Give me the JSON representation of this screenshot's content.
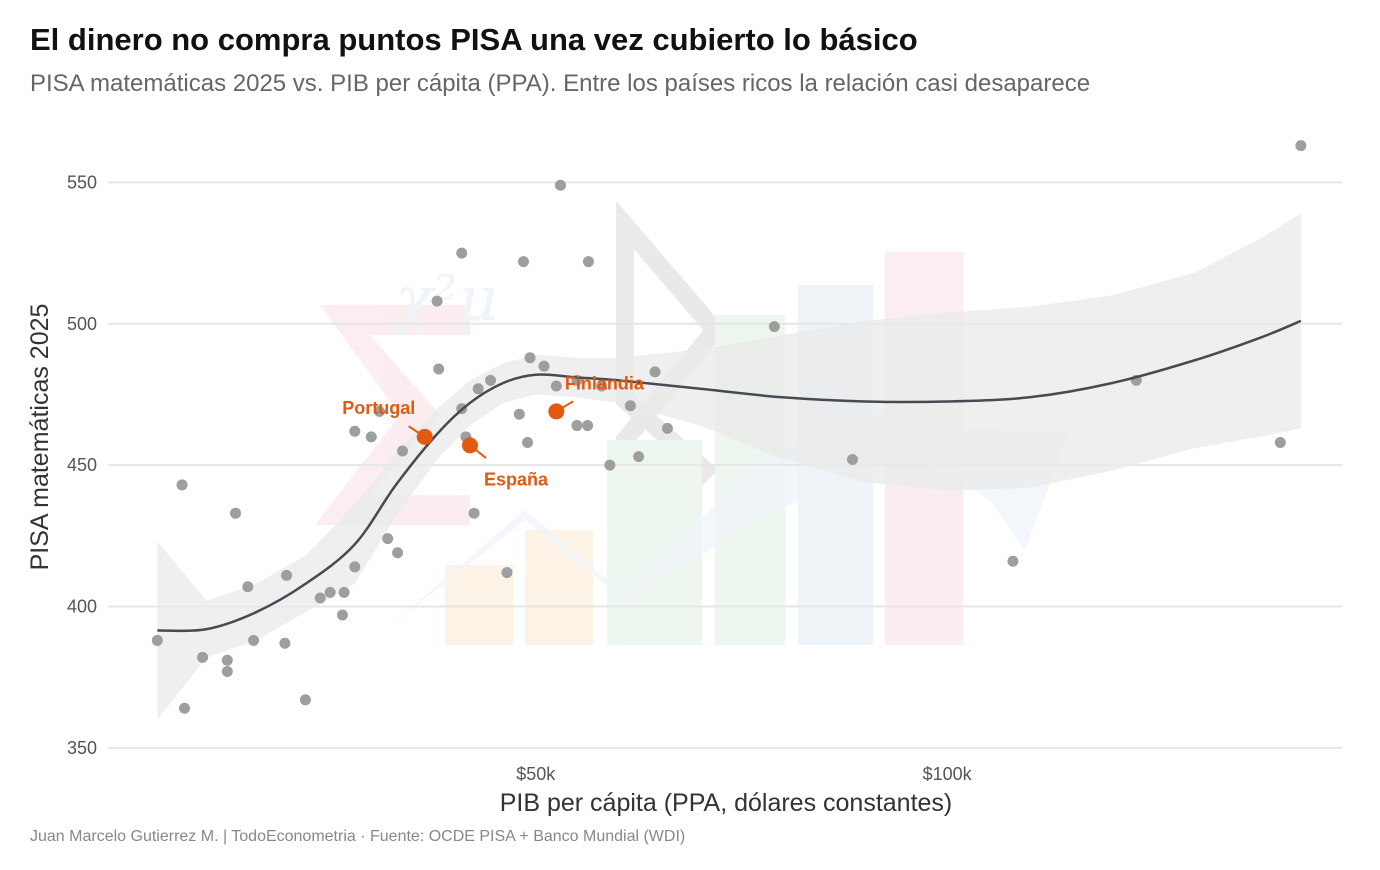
{
  "title": "El dinero no compra puntos PISA una vez cubierto lo básico",
  "subtitle": "PISA matemáticas 2025 vs. PIB per cápita (PPA). Entre los países ricos la relación casi desaparece",
  "caption": "Juan Marcelo Gutierrez M. | TodoEconometria  ·  Fuente: OCDE PISA + Banco Mundial (WDI)",
  "chart_data": {
    "type": "scatter",
    "xlabel": "PIB per cápita (PPA, dólares constantes)",
    "ylabel": "PISA matemáticas 2025",
    "xlim": [
      -2000,
      148000
    ],
    "ylim": [
      345,
      565
    ],
    "x_ticks": [
      {
        "value": 50000,
        "label": "$50k"
      },
      {
        "value": 100000,
        "label": "$100k"
      }
    ],
    "y_ticks": [
      {
        "value": 350,
        "label": "350"
      },
      {
        "value": 400,
        "label": "400"
      },
      {
        "value": 450,
        "label": "450"
      },
      {
        "value": 500,
        "label": "500"
      },
      {
        "value": 550,
        "label": "550"
      }
    ],
    "grid": true,
    "points": [
      {
        "x": 4000,
        "y": 388
      },
      {
        "x": 7000,
        "y": 443
      },
      {
        "x": 7300,
        "y": 364
      },
      {
        "x": 9500,
        "y": 382
      },
      {
        "x": 12500,
        "y": 381
      },
      {
        "x": 12500,
        "y": 377
      },
      {
        "x": 13500,
        "y": 433
      },
      {
        "x": 15000,
        "y": 407
      },
      {
        "x": 15700,
        "y": 388
      },
      {
        "x": 19500,
        "y": 387
      },
      {
        "x": 19700,
        "y": 411
      },
      {
        "x": 22000,
        "y": 367
      },
      {
        "x": 23800,
        "y": 403
      },
      {
        "x": 25000,
        "y": 405
      },
      {
        "x": 26500,
        "y": 397
      },
      {
        "x": 26700,
        "y": 405
      },
      {
        "x": 28000,
        "y": 414
      },
      {
        "x": 28000,
        "y": 462
      },
      {
        "x": 30000,
        "y": 460
      },
      {
        "x": 31000,
        "y": 469
      },
      {
        "x": 32000,
        "y": 424
      },
      {
        "x": 33200,
        "y": 419
      },
      {
        "x": 33800,
        "y": 455
      },
      {
        "x": 38000,
        "y": 508
      },
      {
        "x": 38200,
        "y": 484
      },
      {
        "x": 41000,
        "y": 470
      },
      {
        "x": 41000,
        "y": 525
      },
      {
        "x": 41500,
        "y": 460
      },
      {
        "x": 42500,
        "y": 433
      },
      {
        "x": 43000,
        "y": 477
      },
      {
        "x": 44500,
        "y": 480
      },
      {
        "x": 46500,
        "y": 412
      },
      {
        "x": 48000,
        "y": 468
      },
      {
        "x": 48500,
        "y": 522
      },
      {
        "x": 49000,
        "y": 458
      },
      {
        "x": 49300,
        "y": 488
      },
      {
        "x": 51000,
        "y": 485
      },
      {
        "x": 52500,
        "y": 478
      },
      {
        "x": 53000,
        "y": 549
      },
      {
        "x": 55000,
        "y": 480
      },
      {
        "x": 55000,
        "y": 464
      },
      {
        "x": 56300,
        "y": 464
      },
      {
        "x": 56400,
        "y": 522
      },
      {
        "x": 58000,
        "y": 478
      },
      {
        "x": 59000,
        "y": 450
      },
      {
        "x": 61500,
        "y": 471
      },
      {
        "x": 62500,
        "y": 453
      },
      {
        "x": 64500,
        "y": 483
      },
      {
        "x": 66000,
        "y": 463
      },
      {
        "x": 79000,
        "y": 499
      },
      {
        "x": 88500,
        "y": 452
      },
      {
        "x": 108000,
        "y": 416
      },
      {
        "x": 123000,
        "y": 480
      },
      {
        "x": 140500,
        "y": 458
      },
      {
        "x": 143000,
        "y": 563
      }
    ],
    "highlights": [
      {
        "label": "Portugal",
        "x": 36500,
        "y": 460
      },
      {
        "label": "España",
        "x": 42000,
        "y": 457
      },
      {
        "label": "Finlandia",
        "x": 52500,
        "y": 469
      }
    ],
    "trend": [
      {
        "x": 4000,
        "y": 391.5
      },
      {
        "x": 10000,
        "y": 392
      },
      {
        "x": 16000,
        "y": 398
      },
      {
        "x": 22000,
        "y": 408
      },
      {
        "x": 28000,
        "y": 422
      },
      {
        "x": 33000,
        "y": 443
      },
      {
        "x": 38000,
        "y": 461
      },
      {
        "x": 42000,
        "y": 472
      },
      {
        "x": 46000,
        "y": 479
      },
      {
        "x": 50000,
        "y": 482
      },
      {
        "x": 55000,
        "y": 481
      },
      {
        "x": 60000,
        "y": 480
      },
      {
        "x": 70000,
        "y": 477
      },
      {
        "x": 80000,
        "y": 474
      },
      {
        "x": 90000,
        "y": 472.5
      },
      {
        "x": 100000,
        "y": 472.5
      },
      {
        "x": 110000,
        "y": 474
      },
      {
        "x": 120000,
        "y": 479
      },
      {
        "x": 130000,
        "y": 487
      },
      {
        "x": 138000,
        "y": 495
      },
      {
        "x": 143000,
        "y": 501
      }
    ],
    "band_upper": [
      {
        "x": 4000,
        "y": 423
      },
      {
        "x": 10000,
        "y": 402
      },
      {
        "x": 16000,
        "y": 408
      },
      {
        "x": 22000,
        "y": 418
      },
      {
        "x": 28000,
        "y": 436
      },
      {
        "x": 33000,
        "y": 454
      },
      {
        "x": 38000,
        "y": 470
      },
      {
        "x": 42000,
        "y": 480
      },
      {
        "x": 46000,
        "y": 486
      },
      {
        "x": 50000,
        "y": 489
      },
      {
        "x": 55000,
        "y": 488
      },
      {
        "x": 60000,
        "y": 488
      },
      {
        "x": 70000,
        "y": 491
      },
      {
        "x": 80000,
        "y": 496
      },
      {
        "x": 90000,
        "y": 501
      },
      {
        "x": 100000,
        "y": 504
      },
      {
        "x": 110000,
        "y": 506
      },
      {
        "x": 120000,
        "y": 510
      },
      {
        "x": 130000,
        "y": 518
      },
      {
        "x": 138000,
        "y": 530
      },
      {
        "x": 143000,
        "y": 539
      }
    ],
    "band_lower": [
      {
        "x": 4000,
        "y": 360
      },
      {
        "x": 10000,
        "y": 382
      },
      {
        "x": 16000,
        "y": 388
      },
      {
        "x": 22000,
        "y": 398
      },
      {
        "x": 28000,
        "y": 408
      },
      {
        "x": 33000,
        "y": 432
      },
      {
        "x": 38000,
        "y": 452
      },
      {
        "x": 42000,
        "y": 464
      },
      {
        "x": 46000,
        "y": 472
      },
      {
        "x": 50000,
        "y": 475
      },
      {
        "x": 55000,
        "y": 474
      },
      {
        "x": 60000,
        "y": 472
      },
      {
        "x": 70000,
        "y": 464
      },
      {
        "x": 80000,
        "y": 452
      },
      {
        "x": 90000,
        "y": 444
      },
      {
        "x": 100000,
        "y": 441
      },
      {
        "x": 110000,
        "y": 442
      },
      {
        "x": 120000,
        "y": 448
      },
      {
        "x": 130000,
        "y": 456
      },
      {
        "x": 138000,
        "y": 460
      },
      {
        "x": 143000,
        "y": 463
      }
    ],
    "colors": {
      "point": "#9e9e9e",
      "highlight": "#e35a0e",
      "trend": "#464a52",
      "band": "#e9e9e9",
      "grid": "#e6e6e6"
    }
  }
}
